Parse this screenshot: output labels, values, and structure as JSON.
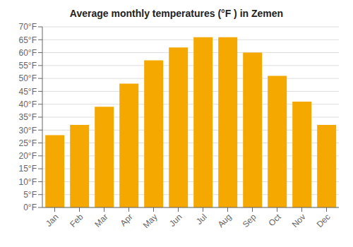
{
  "chart_data": {
    "type": "bar",
    "title": "Average monthly temperatures (°F ) in Zemen",
    "categories": [
      "Jan",
      "Feb",
      "Mar",
      "Apr",
      "May",
      "Jun",
      "Jul",
      "Aug",
      "Sep",
      "Oct",
      "Nov",
      "Dec"
    ],
    "values": [
      28,
      32,
      39,
      48,
      57,
      62,
      66,
      66,
      60,
      51,
      41,
      32
    ],
    "color": "#F5A800",
    "ylim": [
      0,
      70
    ],
    "yticks": [
      {
        "value": 0,
        "label": "0°F"
      },
      {
        "value": 5,
        "label": "5°F"
      },
      {
        "value": 10,
        "label": "10°F"
      },
      {
        "value": 15,
        "label": "15°F"
      },
      {
        "value": 20,
        "label": "20°F"
      },
      {
        "value": 25,
        "label": "25°F"
      },
      {
        "value": 30,
        "label": "30°F"
      },
      {
        "value": 35,
        "label": "35°F"
      },
      {
        "value": 40,
        "label": "40°F"
      },
      {
        "value": 45,
        "label": "45°F"
      },
      {
        "value": 50,
        "label": "50°F"
      },
      {
        "value": 55,
        "label": "55°F"
      },
      {
        "value": 60,
        "label": "60°F"
      },
      {
        "value": 65,
        "label": "65°F"
      },
      {
        "value": 70,
        "label": "70°F"
      }
    ],
    "grid": true
  }
}
